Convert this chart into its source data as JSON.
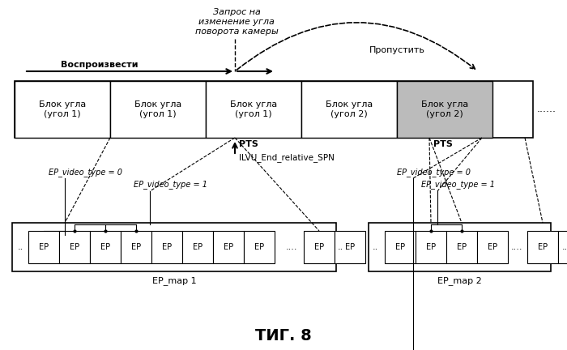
{
  "title": "ΤИГ. 8",
  "bg_color": "#ffffff",
  "query_label": [
    "Запрос на",
    "изменение угла",
    "поворота камеры"
  ],
  "play_label": "Воспроизвести",
  "skip_label": "Пропустить",
  "pts_label": "PTS",
  "ilvu_label": "ILVU_End_relative_SPN",
  "ep_map1_label": "EP_map 1",
  "ep_map2_label": "EP_map 2",
  "ep_vt0_label": "EP_video_type = 0",
  "ep_vt1_label": "EP_video_type = 1",
  "ep_label": "EP",
  "block_labels": [
    "Блок угла\n(угол 1)",
    "Блок угла\n(угол 1)",
    "Блок угла\n(угол 1)",
    "Блок угла\n(угол 2)",
    "Блок угла\n(угол 2)"
  ],
  "block_shaded": [
    false,
    false,
    false,
    false,
    true
  ]
}
